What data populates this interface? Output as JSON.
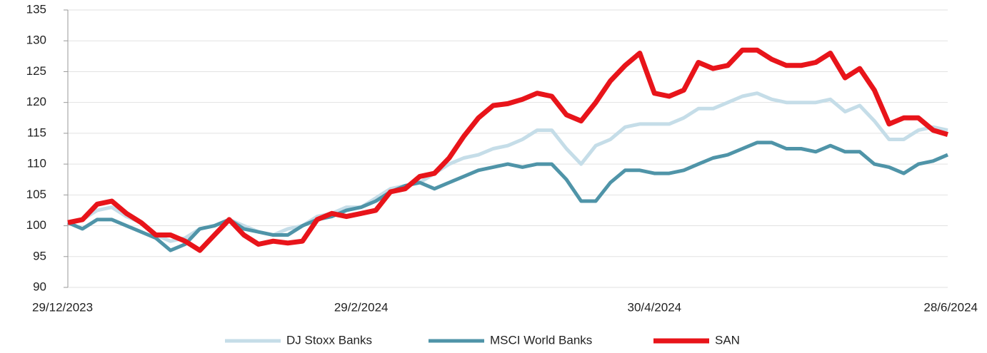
{
  "chart_data": {
    "type": "line",
    "categories": [
      "29/12/2023",
      null,
      null,
      null,
      null,
      null,
      null,
      null,
      null,
      null,
      null,
      null,
      null,
      null,
      null,
      null,
      null,
      null,
      null,
      null,
      "29/2/2024",
      null,
      null,
      null,
      null,
      null,
      null,
      null,
      null,
      null,
      null,
      null,
      null,
      null,
      null,
      null,
      null,
      null,
      null,
      null,
      "30/4/2024",
      null,
      null,
      null,
      null,
      null,
      null,
      null,
      null,
      null,
      null,
      null,
      null,
      null,
      null,
      null,
      null,
      null,
      null,
      null,
      "28/6/2024"
    ],
    "series": [
      {
        "name": "DJ Stoxx Banks",
        "color": "#c5dde8",
        "values": [
          100.5,
          101,
          102.5,
          103,
          101.5,
          100.5,
          98.5,
          97.5,
          98,
          99.5,
          100,
          101,
          100,
          99,
          98.5,
          99.5,
          100,
          101.5,
          102,
          103,
          103,
          104.5,
          106,
          106.5,
          107,
          108.5,
          110,
          111,
          111.5,
          112.5,
          113,
          114,
          115.5,
          115.5,
          112.5,
          110,
          113,
          114,
          116,
          116.5,
          116.5,
          116.5,
          117.5,
          119,
          119,
          120,
          121,
          121.5,
          120.5,
          120,
          120,
          120,
          120.5,
          118.5,
          119.5,
          117,
          114,
          114,
          115.5,
          116,
          115.5
        ]
      },
      {
        "name": "MSCI World Banks",
        "color": "#4f94a8",
        "values": [
          100.5,
          99.5,
          101,
          101,
          100,
          99,
          98,
          96,
          97,
          99.5,
          100,
          101,
          99.5,
          99,
          98.5,
          98.5,
          100,
          101,
          101.5,
          102.5,
          103,
          104,
          105.5,
          106.5,
          107,
          106,
          107,
          108,
          109,
          109.5,
          110,
          109.5,
          110,
          110,
          107.5,
          104,
          104,
          107,
          109,
          109,
          108.5,
          108.5,
          109,
          110,
          111,
          111.5,
          112.5,
          113.5,
          113.5,
          112.5,
          112.5,
          112,
          113,
          112,
          112,
          110,
          109.5,
          108.5,
          110,
          110.5,
          111.5
        ]
      },
      {
        "name": "SAN",
        "color": "#e8141a",
        "values": [
          100.5,
          101,
          103.5,
          104,
          102,
          100.5,
          98.5,
          98.5,
          97.5,
          96,
          98.5,
          101,
          98.5,
          97,
          97.5,
          97.2,
          97.5,
          101,
          102,
          101.5,
          102,
          102.5,
          105.5,
          106,
          108,
          108.5,
          111,
          114.5,
          117.5,
          119.5,
          119.8,
          120.5,
          121.5,
          121,
          118,
          117,
          120,
          123.5,
          126,
          128,
          121.5,
          121,
          122,
          126.5,
          125.5,
          126,
          128.5,
          128.5,
          127,
          126,
          126,
          126.5,
          128,
          124,
          125.5,
          122,
          116.5,
          117.5,
          117.5,
          115.5,
          114.8
        ]
      }
    ],
    "ylim": [
      90,
      135
    ],
    "yticks": [
      90,
      95,
      100,
      105,
      110,
      115,
      120,
      125,
      130,
      135
    ],
    "grid": true,
    "legend": "bottom"
  }
}
